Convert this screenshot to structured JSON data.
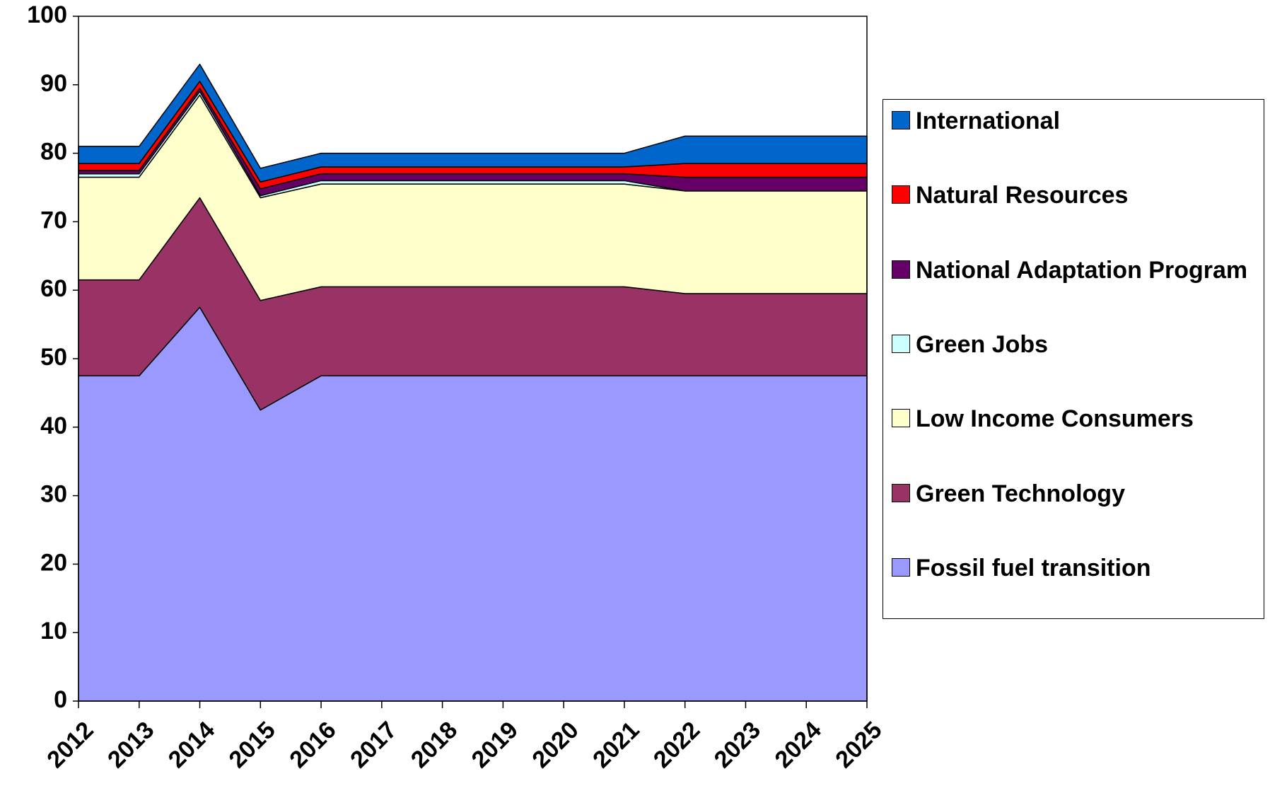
{
  "chart_data": {
    "type": "stacked_area",
    "categories": [
      "2012",
      "2013",
      "2014",
      "2015",
      "2016",
      "2017",
      "2018",
      "2019",
      "2020",
      "2021",
      "2022",
      "2023",
      "2024",
      "2025"
    ],
    "series": [
      {
        "name": "Fossil fuel transition",
        "color": "#9999ff",
        "values": [
          47.5,
          47.5,
          57.5,
          42.5,
          47.5,
          47.5,
          47.5,
          47.5,
          47.5,
          47.5,
          47.5,
          47.5,
          47.5,
          47.5
        ]
      },
      {
        "name": "Green Technology",
        "color": "#993366",
        "values": [
          14,
          14,
          16,
          16,
          13,
          13,
          13,
          13,
          13,
          13,
          12,
          12,
          12,
          12
        ]
      },
      {
        "name": "Low Income Consumers",
        "color": "#ffffcc",
        "values": [
          15,
          15,
          15,
          15,
          15,
          15,
          15,
          15,
          15,
          15,
          15,
          15,
          15,
          15
        ]
      },
      {
        "name": "Green Jobs",
        "color": "#ccffff",
        "values": [
          0.5,
          0.5,
          0.5,
          0.3,
          0.5,
          0.5,
          0.5,
          0.5,
          0.5,
          0.5,
          0,
          0,
          0,
          0
        ]
      },
      {
        "name": "National Adaptation Program",
        "color": "#660066",
        "values": [
          0.5,
          0.5,
          0.5,
          1,
          1,
          1,
          1,
          1,
          1,
          1,
          2,
          2,
          2,
          2
        ]
      },
      {
        "name": "Natural Resources",
        "color": "#ff0000",
        "values": [
          1,
          1,
          1,
          1,
          1,
          1,
          1,
          1,
          1,
          1,
          2,
          2,
          2,
          2
        ]
      },
      {
        "name": "International",
        "color": "#0066cc",
        "values": [
          2.5,
          2.5,
          2.5,
          2,
          2,
          2,
          2,
          2,
          2,
          2,
          4,
          4,
          4,
          4
        ]
      }
    ],
    "ylim": [
      0,
      100
    ],
    "yticks": [
      0,
      10,
      20,
      30,
      40,
      50,
      60,
      70,
      80,
      90,
      100
    ],
    "grid": false,
    "legend": "right"
  }
}
